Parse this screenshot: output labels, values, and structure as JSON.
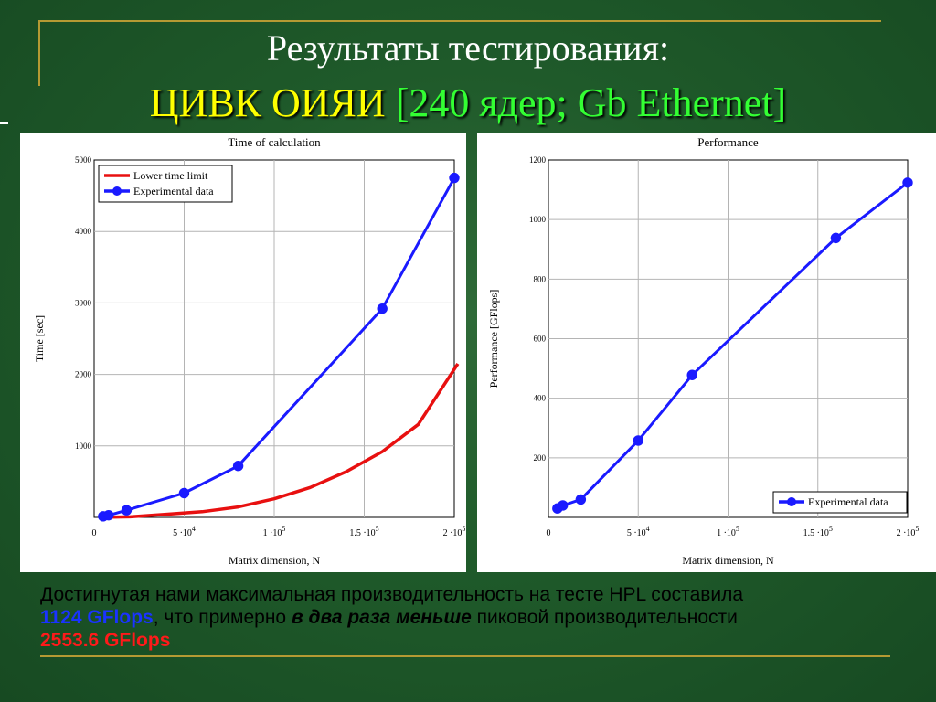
{
  "slide": {
    "title_line1": "Результаты тестирования:",
    "title_line2_part1": "ЦИВК ОИЯИ",
    "title_line2_part2": "[240 ядер; Gb Ethernet]"
  },
  "colors": {
    "background": "#1f5a2a",
    "accent_gold": "#b59a33",
    "title_yellow": "#ffff00",
    "title_green": "#33ff33",
    "series_blue": "#1a1aff",
    "series_red": "#e81010"
  },
  "chart_data": [
    {
      "type": "line",
      "title": "Time of calculation",
      "xlabel": "Matrix dimension, N",
      "ylabel": "Time [sec]",
      "xlim": [
        0,
        200000
      ],
      "ylim": [
        0,
        5000
      ],
      "x_ticks": [
        {
          "value": 0,
          "base": "0",
          "exp": ""
        },
        {
          "value": 50000,
          "base": "5 ·10",
          "exp": "4"
        },
        {
          "value": 100000,
          "base": "1 ·10",
          "exp": "5"
        },
        {
          "value": 150000,
          "base": "1.5 ·10",
          "exp": "5"
        },
        {
          "value": 200000,
          "base": "2 ·10",
          "exp": "5"
        }
      ],
      "y_ticks": [
        "1000",
        "2000",
        "3000",
        "4000",
        "5000"
      ],
      "grid": true,
      "legend_position": "top-left",
      "series": [
        {
          "name": "Lower time limit",
          "color": "#e81010",
          "markers": false,
          "x": [
            5000,
            20000,
            40000,
            60000,
            80000,
            100000,
            120000,
            140000,
            160000,
            180000,
            202000
          ],
          "y": [
            1,
            8,
            43,
            79,
            146,
            260,
            418,
            640,
            920,
            1300,
            2150
          ]
        },
        {
          "name": "Experimental data",
          "color": "#1a1aff",
          "markers": true,
          "x": [
            5000,
            8000,
            18000,
            50000,
            80000,
            160000,
            200000
          ],
          "y": [
            15,
            30,
            100,
            340,
            720,
            2920,
            4750
          ]
        }
      ]
    },
    {
      "type": "line",
      "title": "Performance",
      "xlabel": "Matrix dimension, N",
      "ylabel": "Performance [GFlops]",
      "xlim": [
        0,
        200000
      ],
      "ylim": [
        0,
        1200
      ],
      "x_ticks": [
        {
          "value": 0,
          "base": "0",
          "exp": ""
        },
        {
          "value": 50000,
          "base": "5 ·10",
          "exp": "4"
        },
        {
          "value": 100000,
          "base": "1 ·10",
          "exp": "5"
        },
        {
          "value": 150000,
          "base": "1.5 ·10",
          "exp": "5"
        },
        {
          "value": 200000,
          "base": "2 ·10",
          "exp": "5"
        }
      ],
      "y_ticks": [
        "200",
        "400",
        "600",
        "800",
        "1000",
        "1200"
      ],
      "grid": true,
      "legend_position": "bottom-right",
      "series": [
        {
          "name": "Experimental data",
          "color": "#1a1aff",
          "markers": true,
          "x": [
            5000,
            8000,
            18000,
            50000,
            80000,
            160000,
            200000
          ],
          "y": [
            30,
            40,
            60,
            258,
            478,
            938,
            1124
          ]
        }
      ]
    }
  ],
  "summary": {
    "line1": "Достигнутая нами максимальная производительность на тесте HPL составила",
    "value_achieved": "1124 GFlops",
    "middle1": ", что примерно ",
    "emphasis": "в два раза меньше",
    "middle2": " пиковой производительности",
    "value_peak": "2553.6 GFlops"
  }
}
